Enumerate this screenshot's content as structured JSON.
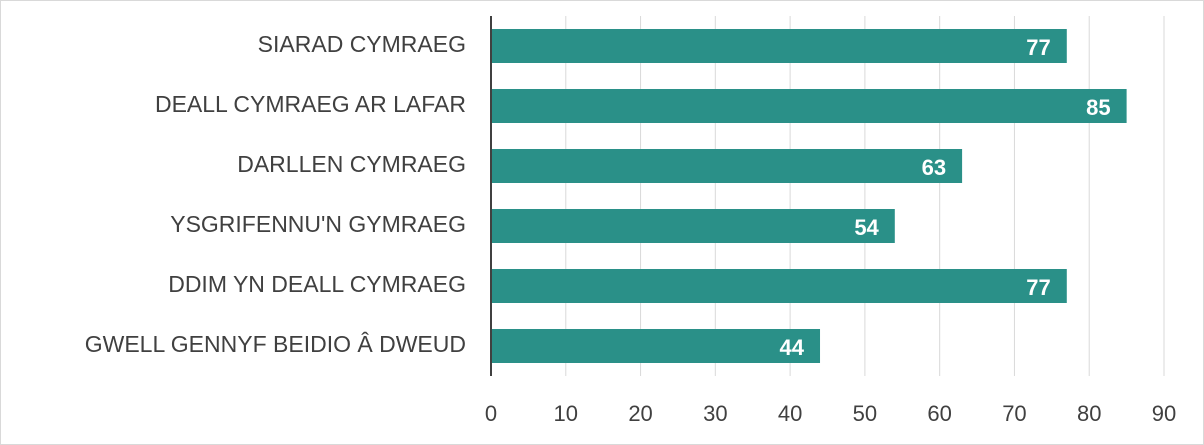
{
  "chart_data": {
    "type": "bar",
    "categories": [
      "SIARAD CYMRAEG",
      "DEALL CYMRAEG AR LAFAR",
      "DARLLEN CYMRAEG",
      "YSGRIFENNU'N GYMRAEG",
      "DDIM YN DEALL CYMRAEG",
      "GWELL GENNYF BEIDIO Â DWEUD"
    ],
    "values": [
      77,
      85,
      63,
      54,
      77,
      44
    ],
    "color": "#2a9088",
    "xlim": [
      0,
      90
    ],
    "xticks": [
      0,
      10,
      20,
      30,
      40,
      50,
      60,
      70,
      80,
      90
    ],
    "grid": true
  }
}
